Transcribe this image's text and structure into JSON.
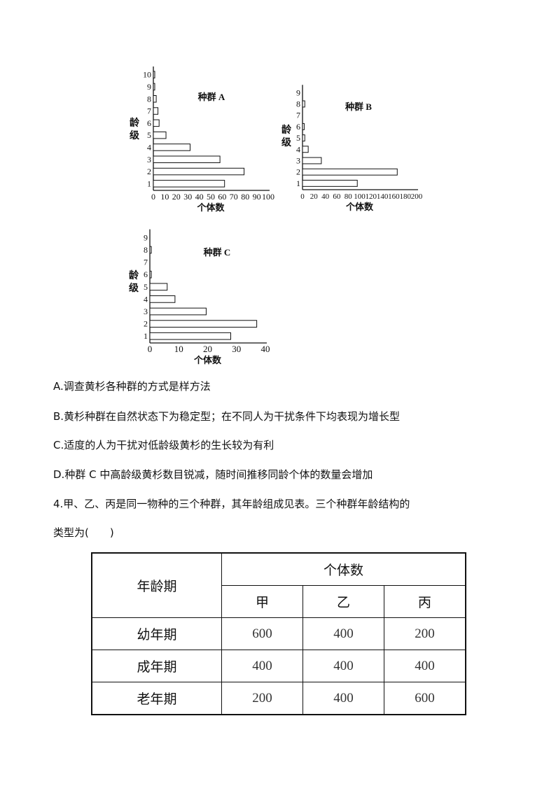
{
  "chart_data": [
    {
      "type": "bar",
      "orientation": "horizontal",
      "title": "种群 A",
      "xlabel": "个体数",
      "ylabel": "龄级",
      "categories": [
        "1",
        "2",
        "3",
        "4",
        "5",
        "6",
        "7",
        "8",
        "9",
        "10"
      ],
      "values": [
        62,
        79,
        58,
        32,
        11,
        5,
        4,
        2.5,
        1,
        1
      ],
      "xlim": [
        0,
        100
      ],
      "xticks": [
        "0",
        "10",
        "20",
        "30",
        "40",
        "50",
        "60",
        "70",
        "80",
        "90",
        "100"
      ],
      "grid": false
    },
    {
      "type": "bar",
      "orientation": "horizontal",
      "title": "种群 B",
      "xlabel": "个体数",
      "ylabel": "龄级",
      "categories": [
        "1",
        "2",
        "3",
        "4",
        "5",
        "6",
        "7",
        "8",
        "9"
      ],
      "values": [
        96,
        166,
        33,
        10,
        4,
        3,
        0,
        4,
        0
      ],
      "xlim": [
        0,
        200
      ],
      "xticks": [
        "0",
        "20",
        "40",
        "60",
        "80",
        "100",
        "120",
        "140",
        "160",
        "180",
        "200"
      ],
      "grid": false
    },
    {
      "type": "bar",
      "orientation": "horizontal",
      "title": "种群 C",
      "xlabel": "个体数",
      "ylabel": "龄级",
      "categories": [
        "1",
        "2",
        "3",
        "4",
        "5",
        "6",
        "7",
        "8",
        "9"
      ],
      "values": [
        28,
        37,
        19.5,
        8.7,
        6,
        0.5,
        0,
        0.5,
        0
      ],
      "xlim": [
        0,
        40
      ],
      "xticks": [
        "0",
        "10",
        "20",
        "30",
        "40"
      ],
      "grid": false
    }
  ],
  "options": {
    "a": "A.调查黄杉各种群的方式是样方法",
    "b": "B.黄杉种群在自然状态下为稳定型；在不同人为干扰条件下均表现为增长型",
    "c": "C.适度的人为干扰对低龄级黄杉的生长较为有利",
    "d": "D.种群 C 中高龄级黄杉数目锐减，随时间推移同龄个体的数量会增加"
  },
  "question4": {
    "line1": "4.甲、乙、丙是同一物种的三个种群，其年龄组成见表。三个种群年龄结构的",
    "line2": "类型为(　　)"
  },
  "table": {
    "header_age": "年龄期",
    "header_count": "个体数",
    "groups": [
      "甲",
      "乙",
      "丙"
    ],
    "rows": [
      {
        "label": "幼年期",
        "values": [
          "600",
          "400",
          "200"
        ]
      },
      {
        "label": "成年期",
        "values": [
          "400",
          "400",
          "400"
        ]
      },
      {
        "label": "老年期",
        "values": [
          "200",
          "400",
          "600"
        ]
      }
    ]
  }
}
